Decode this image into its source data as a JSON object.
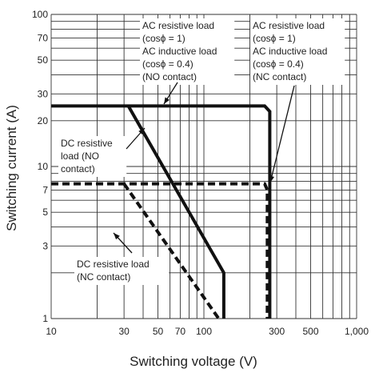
{
  "chart_data": {
    "type": "line",
    "xlabel": "Switching voltage (V)",
    "ylabel": "Switching current (A)",
    "xscale": "log",
    "yscale": "log",
    "xlim": [
      10,
      1000
    ],
    "ylim": [
      1,
      100
    ],
    "grid": true,
    "x_tick_labels": [
      {
        "value": 10,
        "label": "10"
      },
      {
        "value": 30,
        "label": "30"
      },
      {
        "value": 50,
        "label": "50"
      },
      {
        "value": 70,
        "label": "70"
      },
      {
        "value": 100,
        "label": "100"
      },
      {
        "value": 300,
        "label": "300"
      },
      {
        "value": 500,
        "label": "500"
      },
      {
        "value": 1000,
        "label": "1,000"
      }
    ],
    "y_tick_labels": [
      {
        "value": 1,
        "label": "1"
      },
      {
        "value": 3,
        "label": "3"
      },
      {
        "value": 5,
        "label": "5"
      },
      {
        "value": 7,
        "label": "7"
      },
      {
        "value": 10,
        "label": "10"
      },
      {
        "value": 20,
        "label": "20"
      },
      {
        "value": 30,
        "label": "30"
      },
      {
        "value": 50,
        "label": "50"
      },
      {
        "value": 70,
        "label": "70"
      },
      {
        "value": 100,
        "label": "100"
      }
    ],
    "series": [
      {
        "style": "solid",
        "points": [
          [
            10,
            25
          ],
          [
            250,
            25
          ],
          [
            270,
            23
          ],
          [
            270,
            1
          ]
        ]
      },
      {
        "style": "solid",
        "points": [
          [
            32,
            25
          ],
          [
            135,
            2
          ],
          [
            135,
            1
          ]
        ]
      },
      {
        "style": "dashed",
        "points": [
          [
            10,
            7.7
          ],
          [
            250,
            7.7
          ],
          [
            260,
            7
          ],
          [
            260,
            1
          ]
        ]
      },
      {
        "style": "dashed",
        "points": [
          [
            30,
            7.7
          ],
          [
            125,
            1
          ]
        ]
      }
    ],
    "annotations": [
      {
        "lines": [
          "AC resistive load",
          "(cosϕ = 1)",
          "AC inductive load",
          "(cosϕ = 0.4)",
          "(NO contact)"
        ]
      },
      {
        "lines": [
          "AC resistive load",
          "(cosϕ = 1)",
          "AC inductive load",
          "(cosϕ = 0.4)",
          "(NC contact)"
        ]
      },
      {
        "lines": [
          "DC resistive",
          "load (NO",
          "contact)"
        ]
      },
      {
        "lines": [
          "DC resistive load",
          "(NC contact)"
        ]
      }
    ]
  }
}
